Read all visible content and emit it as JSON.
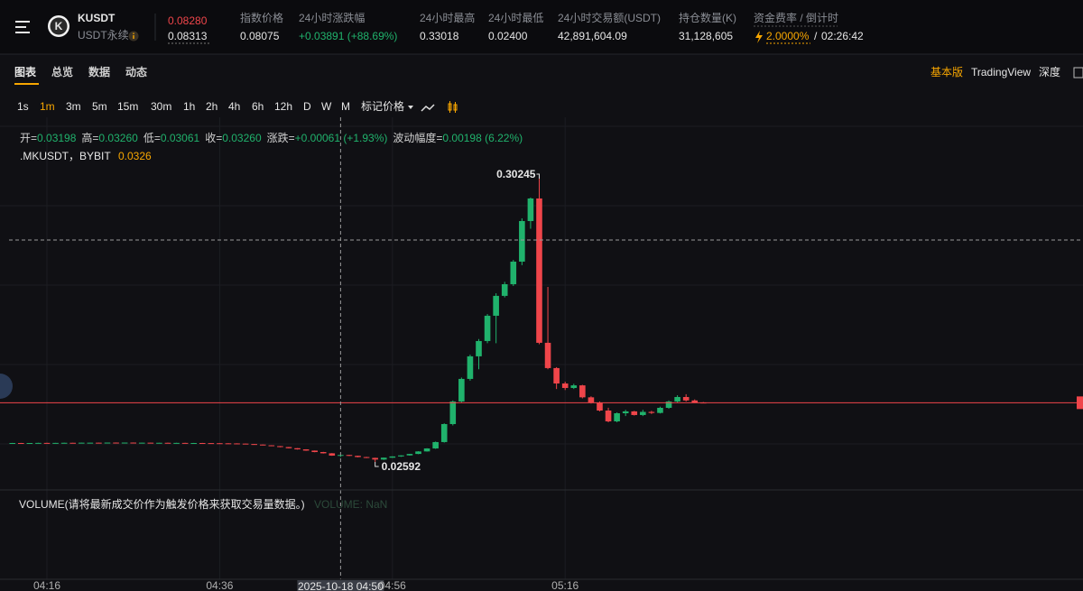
{
  "header": {
    "logo": "K",
    "symbol": "KUSDT",
    "contract": "USDT永续",
    "last_price": "0.08280",
    "mark_price": "0.08313",
    "stats": [
      {
        "label": "指数价格",
        "value": "0.08075"
      },
      {
        "label": "24小时涨跌幅",
        "value": "+0.03891 (+88.69%)"
      },
      {
        "label": "24小时最高",
        "value": "0.33018"
      },
      {
        "label": "24小时最低",
        "value": "0.02400"
      },
      {
        "label": "24小时交易额(USDT)",
        "value": "42,891,604.09"
      },
      {
        "label": "持仓数量(K)",
        "value": "31,128,605"
      }
    ],
    "funding": {
      "label": "资金费率 / 倒计时",
      "rate": "2.0000%",
      "separator": "/",
      "countdown": "02:26:42"
    }
  },
  "tabs": [
    "图表",
    "总览",
    "数据",
    "动态"
  ],
  "views": [
    "基本版",
    "TradingView",
    "深度"
  ],
  "intervals": [
    "1s",
    "1m",
    "3m",
    "5m",
    "15m",
    "30m",
    "1h",
    "2h",
    "4h",
    "6h",
    "12h",
    "D",
    "W",
    "M"
  ],
  "price_type": "标记价格",
  "legend": {
    "items": [
      {
        "label": "开=",
        "value": "0.03198"
      },
      {
        "label": "高=",
        "value": "0.03260"
      },
      {
        "label": "低=",
        "value": "0.03061"
      },
      {
        "label": "收=",
        "value": "0.03260"
      },
      {
        "label": "涨跌=",
        "value": "+0.00061 (+1.93%)"
      },
      {
        "label": "波动幅度=",
        "value": "0.00198 (6.22%)"
      }
    ],
    "source": ".MKUSDT，BYBIT",
    "source_value": "0.0326"
  },
  "volume": {
    "title": "VOLUME(请将最新成交价作为触发价格来获取交易量数据。)",
    "value_label": "VOLUME: NaN"
  },
  "chart_data": {
    "type": "candlestick",
    "up_color": "#20b26c",
    "down_color": "#ef454a",
    "ylim": [
      0.0016,
      0.3571
    ],
    "last_price": 0.0828,
    "x": [
      "04:12",
      "04:13",
      "04:14",
      "04:15",
      "04:16",
      "04:17",
      "04:18",
      "04:19",
      "04:20",
      "04:21",
      "04:22",
      "04:23",
      "04:24",
      "04:25",
      "04:26",
      "04:27",
      "04:28",
      "04:29",
      "04:30",
      "04:31",
      "04:32",
      "04:33",
      "04:34",
      "04:35",
      "04:36",
      "04:37",
      "04:38",
      "04:39",
      "04:40",
      "04:41",
      "04:42",
      "04:43",
      "04:44",
      "04:45",
      "04:46",
      "04:47",
      "04:48",
      "04:49",
      "04:50",
      "04:51",
      "04:52",
      "04:53",
      "04:54",
      "04:55",
      "04:56",
      "04:57",
      "04:58",
      "04:59",
      "05:00",
      "05:01",
      "05:02",
      "05:03",
      "05:04",
      "05:05",
      "05:06",
      "05:07",
      "05:08",
      "05:09",
      "05:10",
      "05:11",
      "05:12",
      "05:13",
      "05:14",
      "05:15",
      "05:16",
      "05:17",
      "05:18",
      "05:19",
      "05:20",
      "05:21",
      "05:22",
      "05:23",
      "05:24",
      "05:25",
      "05:26",
      "05:27",
      "05:28",
      "05:29",
      "05:30",
      "05:31",
      "05:32"
    ],
    "candles": [
      [
        0.044,
        0.0442,
        0.0439,
        0.0441
      ],
      [
        0.0441,
        0.0442,
        0.044,
        0.044
      ],
      [
        0.044,
        0.0441,
        0.0439,
        0.0441
      ],
      [
        0.0441,
        0.0443,
        0.044,
        0.0442
      ],
      [
        0.0442,
        0.0443,
        0.0441,
        0.0441
      ],
      [
        0.0441,
        0.0442,
        0.044,
        0.0442
      ],
      [
        0.0442,
        0.0444,
        0.0441,
        0.0443
      ],
      [
        0.0443,
        0.0444,
        0.0442,
        0.0442
      ],
      [
        0.0442,
        0.0444,
        0.0441,
        0.0444
      ],
      [
        0.0444,
        0.0445,
        0.0443,
        0.0444
      ],
      [
        0.0444,
        0.0445,
        0.0442,
        0.0443
      ],
      [
        0.0443,
        0.0445,
        0.0442,
        0.0445
      ],
      [
        0.0445,
        0.0446,
        0.0444,
        0.0444
      ],
      [
        0.0444,
        0.0445,
        0.0443,
        0.0445
      ],
      [
        0.0445,
        0.0446,
        0.0444,
        0.0444
      ],
      [
        0.0444,
        0.0445,
        0.0443,
        0.0444
      ],
      [
        0.0444,
        0.0445,
        0.0442,
        0.0443
      ],
      [
        0.0443,
        0.0444,
        0.0442,
        0.0443
      ],
      [
        0.0443,
        0.0444,
        0.0441,
        0.0442
      ],
      [
        0.0442,
        0.0443,
        0.0441,
        0.0442
      ],
      [
        0.0442,
        0.0443,
        0.044,
        0.0441
      ],
      [
        0.0441,
        0.0442,
        0.044,
        0.0441
      ],
      [
        0.0441,
        0.0442,
        0.0439,
        0.044
      ],
      [
        0.044,
        0.0441,
        0.0438,
        0.0439
      ],
      [
        0.0439,
        0.044,
        0.0437,
        0.0438
      ],
      [
        0.0438,
        0.0439,
        0.0436,
        0.0437
      ],
      [
        0.0437,
        0.0438,
        0.0434,
        0.0435
      ],
      [
        0.0435,
        0.0436,
        0.043,
        0.0431
      ],
      [
        0.0431,
        0.0432,
        0.0425,
        0.0426
      ],
      [
        0.0426,
        0.0427,
        0.0418,
        0.0419
      ],
      [
        0.0419,
        0.042,
        0.041,
        0.0411
      ],
      [
        0.0411,
        0.0412,
        0.04,
        0.0402
      ],
      [
        0.0402,
        0.0403,
        0.039,
        0.0391
      ],
      [
        0.0391,
        0.0392,
        0.0378,
        0.038
      ],
      [
        0.038,
        0.0381,
        0.0366,
        0.0368
      ],
      [
        0.0368,
        0.0369,
        0.0352,
        0.0354
      ],
      [
        0.0354,
        0.0356,
        0.034,
        0.0342
      ],
      [
        0.0342,
        0.0344,
        0.0318,
        0.032
      ],
      [
        0.03198,
        0.0326,
        0.03061,
        0.0326
      ],
      [
        0.0326,
        0.0328,
        0.0316,
        0.0318
      ],
      [
        0.0318,
        0.0319,
        0.0304,
        0.0306
      ],
      [
        0.0306,
        0.0308,
        0.0296,
        0.0298
      ],
      [
        0.0298,
        0.03,
        0.02592,
        0.0282
      ],
      [
        0.0282,
        0.0301,
        0.0278,
        0.03
      ],
      [
        0.03,
        0.0313,
        0.0298,
        0.0312
      ],
      [
        0.0312,
        0.0323,
        0.0308,
        0.0322
      ],
      [
        0.0322,
        0.0337,
        0.032,
        0.0336
      ],
      [
        0.0336,
        0.0362,
        0.0334,
        0.036
      ],
      [
        0.036,
        0.0391,
        0.0358,
        0.0389
      ],
      [
        0.0389,
        0.0455,
        0.0385,
        0.045
      ],
      [
        0.045,
        0.063,
        0.0445,
        0.0623
      ],
      [
        0.0623,
        0.085,
        0.061,
        0.084
      ],
      [
        0.084,
        0.107,
        0.083,
        0.1057
      ],
      [
        0.1057,
        0.129,
        0.104,
        0.1274
      ],
      [
        0.1274,
        0.144,
        0.115,
        0.1421
      ],
      [
        0.1421,
        0.168,
        0.14,
        0.1664
      ],
      [
        0.1664,
        0.188,
        0.14,
        0.1855
      ],
      [
        0.1855,
        0.199,
        0.184,
        0.1967
      ],
      [
        0.1967,
        0.22,
        0.195,
        0.2184
      ],
      [
        0.2184,
        0.26,
        0.215,
        0.2574
      ],
      [
        0.2574,
        0.28,
        0.25,
        0.2791
      ],
      [
        0.2791,
        0.30245,
        0.139,
        0.1404
      ],
      [
        0.1404,
        0.1941,
        0.115,
        0.1161
      ],
      [
        0.1161,
        0.117,
        0.096,
        0.1013
      ],
      [
        0.1013,
        0.103,
        0.095,
        0.097
      ],
      [
        0.097,
        0.101,
        0.096,
        0.0995
      ],
      [
        0.0995,
        0.1,
        0.087,
        0.088
      ],
      [
        0.088,
        0.089,
        0.082,
        0.083
      ],
      [
        0.083,
        0.084,
        0.0745,
        0.0753
      ],
      [
        0.0753,
        0.078,
        0.064,
        0.0649
      ],
      [
        0.0649,
        0.0735,
        0.064,
        0.0727
      ],
      [
        0.0727,
        0.076,
        0.07,
        0.0745
      ],
      [
        0.0745,
        0.075,
        0.0705,
        0.071
      ],
      [
        0.071,
        0.076,
        0.07,
        0.074
      ],
      [
        0.074,
        0.075,
        0.072,
        0.073
      ],
      [
        0.073,
        0.079,
        0.0725,
        0.0779
      ],
      [
        0.0779,
        0.085,
        0.077,
        0.084
      ],
      [
        0.084,
        0.09,
        0.083,
        0.0883
      ],
      [
        0.0883,
        0.091,
        0.084,
        0.085
      ],
      [
        0.085,
        0.086,
        0.0825,
        0.083
      ],
      [
        0.083,
        0.0835,
        0.0823,
        0.0828
      ]
    ],
    "xticks": [
      "04:16",
      "04:36",
      "04:56",
      "05:16"
    ],
    "crosshair": "2025-10-18 04:50"
  }
}
